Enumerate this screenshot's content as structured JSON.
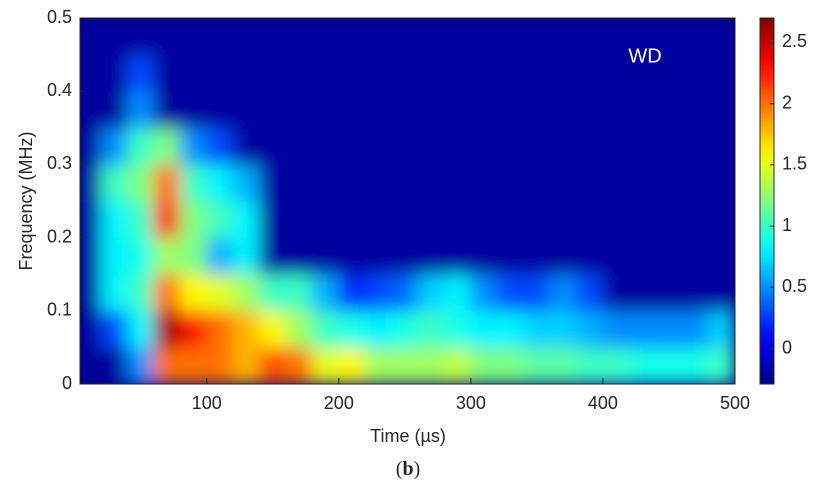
{
  "chart_data": {
    "type": "heatmap",
    "xlabel": "Time (µs)",
    "ylabel": "Frequency (MHz)",
    "annotation": "WD",
    "caption_parts": [
      "(",
      "b",
      ")"
    ],
    "x": [
      10,
      30,
      50,
      70,
      90,
      110,
      130,
      150,
      170,
      190,
      210,
      230,
      250,
      270,
      290,
      310,
      330,
      350,
      370,
      390,
      410,
      430,
      450,
      470,
      490
    ],
    "y": [
      0.025,
      0.075,
      0.125,
      0.175,
      0.225,
      0.275,
      0.325,
      0.375,
      0.425,
      0.475
    ],
    "z": [
      [
        -0.2,
        -0.2,
        0.5,
        2.0,
        2.0,
        2.0,
        1.8,
        2.1,
        2.0,
        1.5,
        1.6,
        1.3,
        1.3,
        1.3,
        1.4,
        1.2,
        1.2,
        1.1,
        1.1,
        1.0,
        1.0,
        0.9,
        0.9,
        0.9,
        1.0
      ],
      [
        -0.2,
        0.3,
        0.8,
        2.6,
        2.3,
        2.0,
        1.8,
        1.6,
        1.3,
        1.0,
        0.9,
        0.8,
        0.9,
        1.0,
        0.9,
        0.8,
        0.8,
        0.7,
        0.7,
        0.6,
        0.5,
        0.5,
        0.5,
        0.5,
        0.7
      ],
      [
        -0.2,
        0.8,
        1.0,
        2.0,
        1.6,
        1.5,
        1.3,
        1.0,
        1.0,
        0.6,
        0.2,
        0.3,
        0.4,
        0.7,
        0.8,
        0.5,
        0.3,
        0.3,
        0.5,
        0.3,
        -0.2,
        -0.2,
        -0.2,
        -0.2,
        -0.2
      ],
      [
        -0.2,
        0.8,
        0.9,
        1.3,
        1.2,
        0.6,
        0.8,
        -0.2,
        -0.2,
        -0.2,
        -0.2,
        -0.2,
        -0.2,
        -0.2,
        -0.2,
        -0.2,
        -0.2,
        -0.2,
        -0.2,
        -0.2,
        -0.2,
        -0.2,
        -0.2,
        -0.2,
        -0.2
      ],
      [
        -0.2,
        0.8,
        1.0,
        2.2,
        1.2,
        1.0,
        0.8,
        -0.2,
        -0.2,
        -0.2,
        -0.2,
        -0.2,
        -0.2,
        -0.2,
        -0.2,
        -0.2,
        -0.2,
        -0.2,
        -0.2,
        -0.2,
        -0.2,
        -0.2,
        -0.2,
        -0.2,
        -0.2
      ],
      [
        -0.2,
        1.0,
        1.2,
        2.0,
        1.0,
        0.8,
        0.6,
        -0.2,
        -0.2,
        -0.2,
        -0.2,
        -0.2,
        -0.2,
        -0.2,
        -0.2,
        -0.2,
        -0.2,
        -0.2,
        -0.2,
        -0.2,
        -0.2,
        -0.2,
        -0.2,
        -0.2,
        -0.2
      ],
      [
        -0.2,
        0.5,
        1.0,
        1.2,
        0.5,
        0.3,
        -0.2,
        -0.2,
        -0.2,
        -0.2,
        -0.2,
        -0.2,
        -0.2,
        -0.2,
        -0.2,
        -0.2,
        -0.2,
        -0.2,
        -0.2,
        -0.2,
        -0.2,
        -0.2,
        -0.2,
        -0.2,
        -0.2
      ],
      [
        -0.2,
        -0.2,
        0.5,
        -0.2,
        -0.2,
        -0.2,
        -0.2,
        -0.2,
        -0.2,
        -0.2,
        -0.2,
        -0.2,
        -0.2,
        -0.2,
        -0.2,
        -0.2,
        -0.2,
        -0.2,
        -0.2,
        -0.2,
        -0.2,
        -0.2,
        -0.2,
        -0.2,
        -0.2
      ],
      [
        -0.2,
        -0.2,
        0.3,
        -0.2,
        -0.2,
        -0.2,
        -0.2,
        -0.2,
        -0.2,
        -0.2,
        -0.2,
        -0.2,
        -0.2,
        -0.2,
        -0.2,
        -0.2,
        -0.2,
        -0.2,
        -0.2,
        -0.2,
        -0.2,
        -0.2,
        -0.2,
        -0.2,
        -0.2
      ],
      [
        -0.2,
        -0.2,
        -0.2,
        -0.2,
        -0.2,
        -0.2,
        -0.2,
        -0.2,
        -0.2,
        -0.2,
        -0.2,
        -0.2,
        -0.2,
        -0.2,
        -0.2,
        -0.2,
        -0.2,
        -0.2,
        -0.2,
        -0.2,
        -0.2,
        -0.2,
        -0.2,
        -0.2,
        -0.2
      ]
    ],
    "xlim": [
      4,
      500
    ],
    "xticks": [
      100,
      200,
      300,
      400,
      500
    ],
    "ylim": [
      0,
      0.5
    ],
    "yticks": [
      0,
      0.1,
      0.2,
      0.3,
      0.4,
      0.5
    ],
    "clim": [
      -0.29,
      2.7
    ],
    "cticks": [
      0,
      0.5,
      1,
      1.5,
      2,
      2.5
    ],
    "colormap": "jet"
  }
}
